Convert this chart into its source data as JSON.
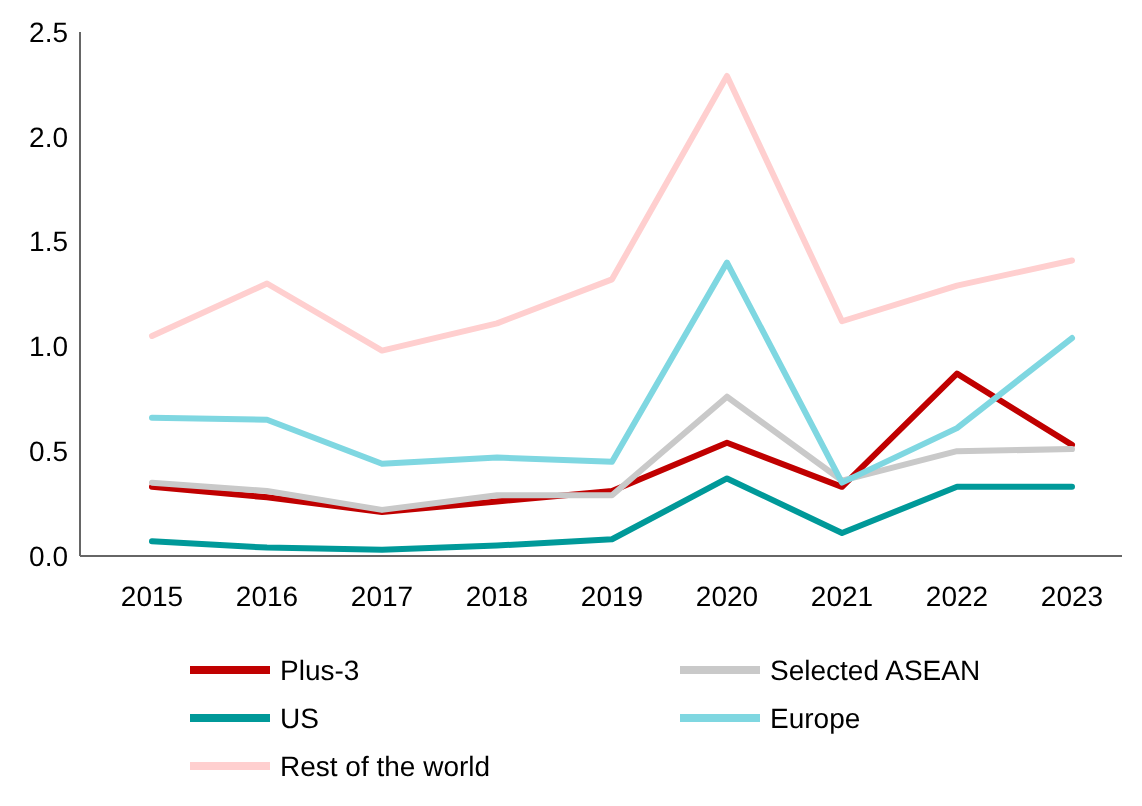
{
  "chart_data": {
    "type": "line",
    "categories": [
      "2015",
      "2016",
      "2017",
      "2018",
      "2019",
      "2020",
      "2021",
      "2022",
      "2023"
    ],
    "series": [
      {
        "name": "Plus-3",
        "color": "#c00000",
        "values": [
          0.33,
          0.28,
          0.21,
          0.26,
          0.31,
          0.54,
          0.33,
          0.87,
          0.53
        ]
      },
      {
        "name": "Selected ASEAN",
        "color": "#c9c9c9",
        "values": [
          0.35,
          0.31,
          0.22,
          0.29,
          0.29,
          0.76,
          0.36,
          0.5,
          0.51
        ]
      },
      {
        "name": "US",
        "color": "#009999",
        "values": [
          0.07,
          0.04,
          0.03,
          0.05,
          0.08,
          0.37,
          0.11,
          0.33,
          0.33
        ]
      },
      {
        "name": "Europe",
        "color": "#7fd7e1",
        "values": [
          0.66,
          0.65,
          0.44,
          0.47,
          0.45,
          1.4,
          0.35,
          0.61,
          1.04
        ]
      },
      {
        "name": "Rest of the world",
        "color": "#ffcfcf",
        "values": [
          1.05,
          1.3,
          0.98,
          1.11,
          1.32,
          2.29,
          1.12,
          1.29,
          1.41
        ]
      }
    ],
    "ylim": [
      0,
      2.5
    ],
    "yticks": [
      {
        "value": 0,
        "label": "0.0"
      },
      {
        "value": 0.5,
        "label": "0.5"
      },
      {
        "value": 1,
        "label": "1.0"
      },
      {
        "value": 1.5,
        "label": "1.5"
      },
      {
        "value": 2,
        "label": "2.0"
      },
      {
        "value": 2.5,
        "label": "2.5"
      }
    ],
    "grid": false,
    "legend": "bottom",
    "marker": "none",
    "line_style": "solid"
  }
}
